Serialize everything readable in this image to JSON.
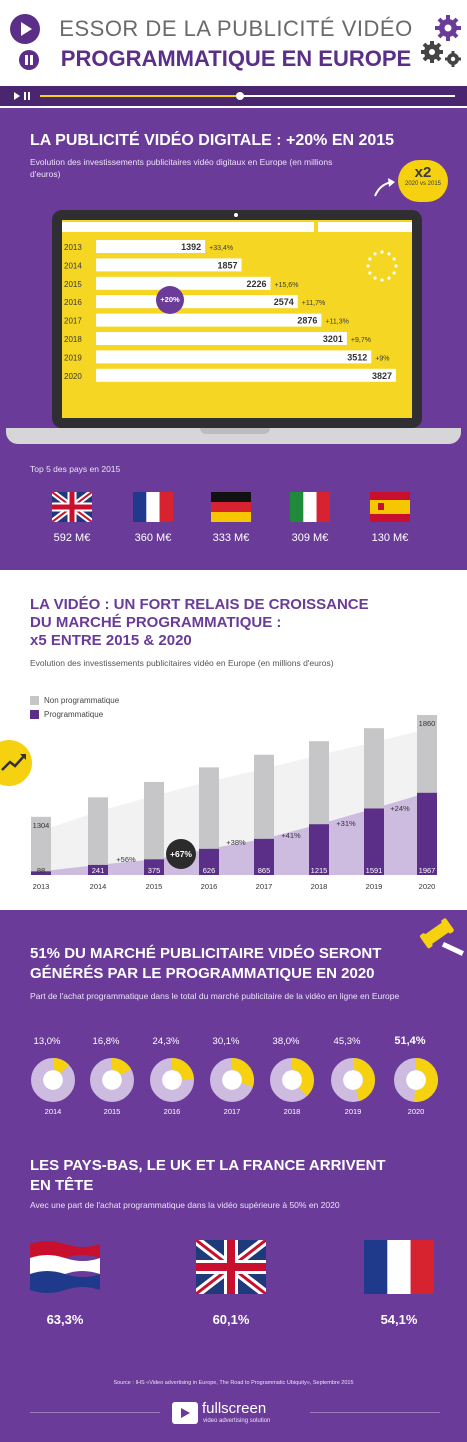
{
  "header": {
    "title_line1": "ESSOR DE LA PUBLICITÉ VIDÉO",
    "title_line2": "PROGRAMMATIQUE EN EUROPE"
  },
  "section1": {
    "title": "LA PUBLICITÉ VIDÉO DIGITALE : +20% EN 2015",
    "subtitle": "Evolution des investissements publicitaires vidéo digitaux en Europe (en millions d'euros)",
    "badge_main": "x2",
    "badge_sub": "2020 vs 2015",
    "cagr_badge": "+20%",
    "top5_label": "Top 5 des pays en 2015",
    "countries": [
      {
        "flag": "uk-flag-icon",
        "amount": "592 M€"
      },
      {
        "flag": "france-flag-icon",
        "amount": "360 M€"
      },
      {
        "flag": "germany-flag-icon",
        "amount": "333 M€"
      },
      {
        "flag": "italy-flag-icon",
        "amount": "309 M€"
      },
      {
        "flag": "spain-flag-icon",
        "amount": "130 M€"
      }
    ]
  },
  "section2": {
    "title_line1": "LA VIDÉO : UN FORT RELAIS DE CROISSANCE",
    "title_line2": "DU MARCHÉ PROGRAMMATIQUE :",
    "title_line3": "x5 ENTRE 2015 & 2020",
    "subtitle": "Evolution des investissements publicitaires vidéo en Europe (en millions d'euros)",
    "badge": "+67%"
  },
  "section3": {
    "title": "51% DU MARCHÉ PUBLICITAIRE VIDÉO SERONT GÉNÉRÉS PAR LE PROGRAMMATIQUE EN 2020",
    "subtitle": "Part de l'achat programmatique dans le total du marché publicitaire de la vidéo en ligne en Europe",
    "title2": "LES PAYS-BAS, LE UK ET LA FRANCE ARRIVENT EN TÊTE",
    "subtitle2": "Avec une part de l'achat programmatique dans la vidéo supérieure à 50% en 2020",
    "top_countries": [
      {
        "flag": "netherlands-flag-icon",
        "pct": "63,3%"
      },
      {
        "flag": "uk-flag-icon",
        "pct": "60,1%"
      },
      {
        "flag": "france-flag-icon",
        "pct": "54,1%"
      }
    ],
    "source": "Source : IHS «Video advertising in Europe, The Road to Programmatic Ubiquity», Septembre 2015",
    "logo_name": "fullscreen",
    "logo_tag": "video advertising solution"
  },
  "colors": {
    "purple": "#6a3b99",
    "dark_purple": "#4a2670",
    "yellow": "#f6d110",
    "grey": "#c6c6c8",
    "light_purple": "#cdbbe0"
  },
  "chart_data": [
    {
      "type": "bar",
      "categories": [
        "2013",
        "2014",
        "2015",
        "2016",
        "2017",
        "2018",
        "2019",
        "2020"
      ],
      "values": [
        1392,
        1857,
        2226,
        2574,
        2876,
        3201,
        3512,
        3827
      ],
      "labels": [
        "1392",
        "1857",
        "2226",
        "2574",
        "2876",
        "3201",
        "3512",
        "3827"
      ],
      "growth": [
        "+33,4%",
        "+15,6%",
        "+11,7%",
        "+11,3%",
        "+9,7%",
        "+9%"
      ],
      "orientation": "horizontal"
    },
    {
      "type": "bar",
      "stacked": true,
      "categories": [
        "2013",
        "2014",
        "2015",
        "2016",
        "2017",
        "2018",
        "2019",
        "2020"
      ],
      "series": [
        {
          "name": "Non programmatique",
          "values": [
            1304,
            1616,
            1851,
            1948,
            2011,
            1986,
            1921,
            1860
          ],
          "labels": [
            "1304",
            "",
            "",
            "",
            "",
            "",
            "",
            "1860"
          ]
        },
        {
          "name": "Programmatique",
          "values": [
            88,
            241,
            375,
            626,
            865,
            1215,
            1591,
            1967
          ],
          "labels": [
            "88",
            "241",
            "375",
            "626",
            "865",
            "1215",
            "1591",
            "1967"
          ]
        }
      ],
      "growth": [
        "+56%",
        "+67%",
        "+38%",
        "+41%",
        "+31%",
        "+24%"
      ]
    },
    {
      "type": "pie",
      "style": "donut",
      "categories": [
        "2014",
        "2015",
        "2016",
        "2017",
        "2018",
        "2019",
        "2020"
      ],
      "values": [
        13.0,
        16.8,
        24.3,
        30.1,
        38.0,
        45.3,
        51.4
      ],
      "labels": [
        "13,0%",
        "16,8%",
        "24,3%",
        "30,1%",
        "38,0%",
        "45,3%",
        "51,4%"
      ]
    }
  ]
}
